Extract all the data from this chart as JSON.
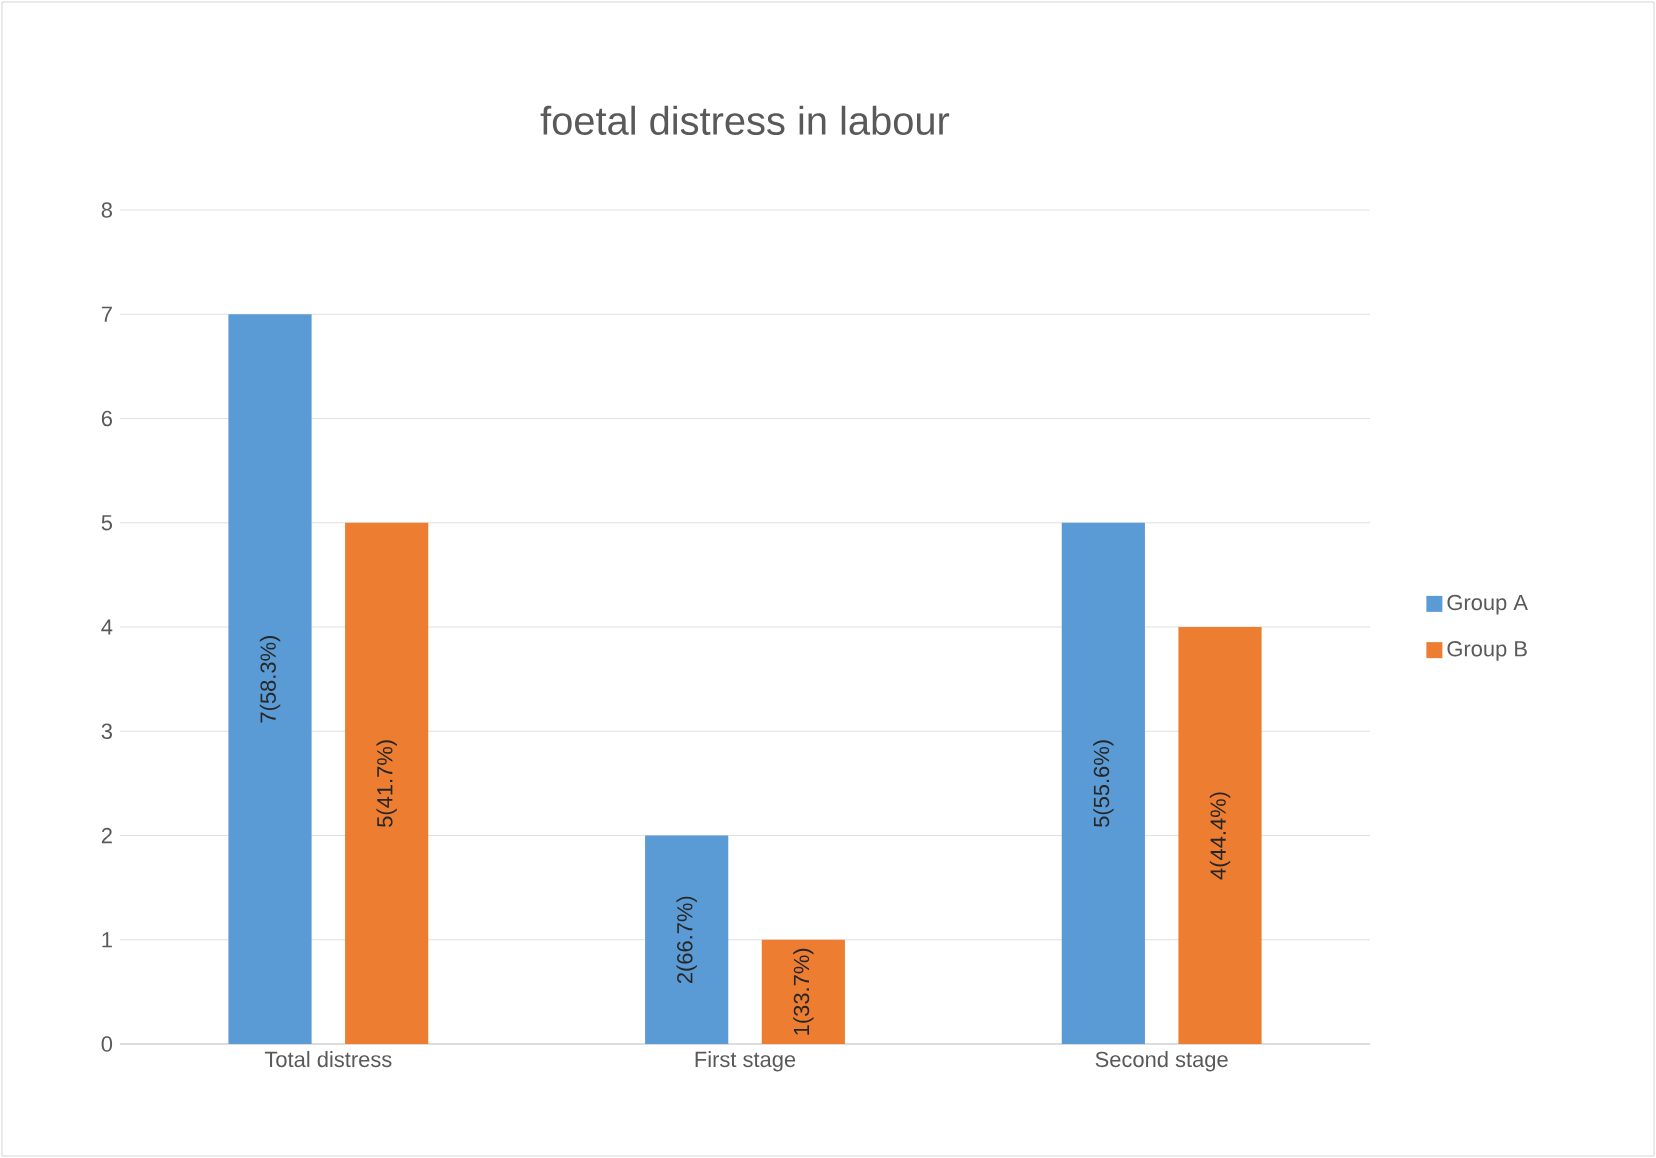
{
  "chart_data": {
    "type": "bar",
    "title": "foetal distress in labour",
    "categories": [
      "Total distress",
      "First stage",
      "Second stage"
    ],
    "series": [
      {
        "name": "Group A",
        "color": "#5b9bd5",
        "values": [
          7,
          2,
          5
        ],
        "value_labels": [
          "7(58.3%)",
          "2(66.7%)",
          "5(55.6%)"
        ]
      },
      {
        "name": "Group B",
        "color": "#ed7d31",
        "values": [
          5,
          1,
          4
        ],
        "value_labels": [
          "5(41.7%)",
          "1(33.7%)",
          "4(44.4%)"
        ]
      }
    ],
    "ylim": [
      0,
      8
    ],
    "yticks": [
      0,
      1,
      2,
      3,
      4,
      5,
      6,
      7,
      8
    ],
    "grid": "y",
    "legend": "right"
  }
}
